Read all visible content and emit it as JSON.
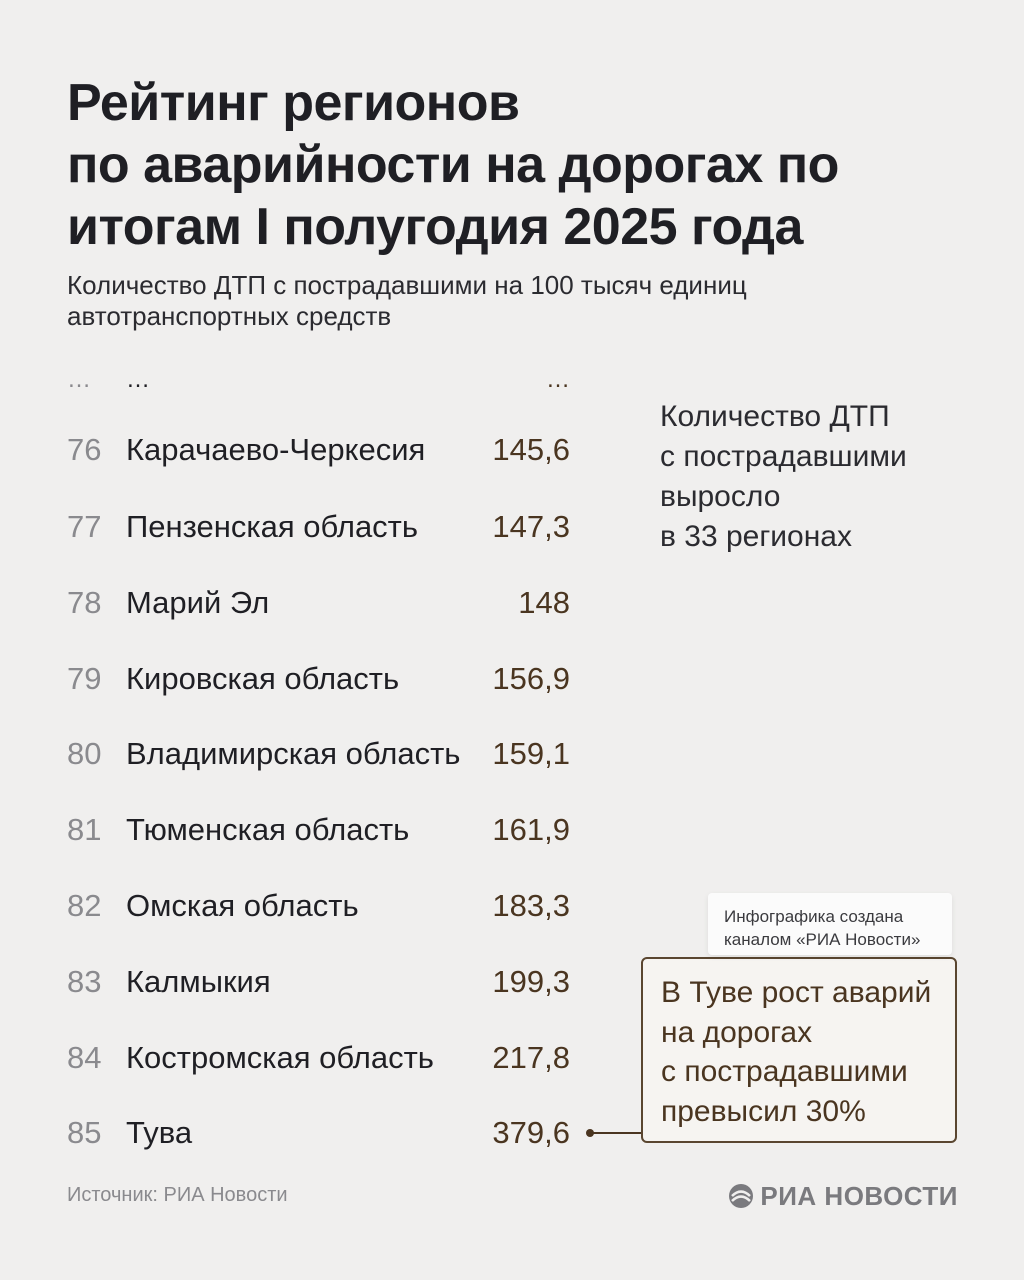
{
  "header": {
    "title": [
      "Рейтинг регионов",
      "по аварийности на дорогах по",
      "итогам I полугодия 2025 года"
    ],
    "subtitle": [
      "Количество ДТП с пострадавшими на 100 тысяч единиц",
      "автотранспортных средств"
    ]
  },
  "table": {
    "rows": [
      [
        "…",
        "…",
        "…"
      ],
      [
        "76",
        "Карачаево-Черкесия",
        "145,6"
      ],
      [
        "77",
        "Пензенская область",
        "147,3"
      ],
      [
        "78",
        "Марий Эл",
        "148"
      ],
      [
        "79",
        "Кировская область",
        "156,9"
      ],
      [
        "80",
        "Владимирская область",
        "159,1"
      ],
      [
        "81",
        "Тюменская область",
        "161,9"
      ],
      [
        "82",
        "Омская область",
        "183,3"
      ],
      [
        "83",
        "Калмыкия",
        "199,3"
      ],
      [
        "84",
        "Костромская область",
        "217,8"
      ],
      [
        "85",
        "Тува",
        "379,6"
      ]
    ]
  },
  "side_note": [
    "Количество ДТП",
    "с пострадавшими",
    "выросло",
    "в 33 регионах"
  ],
  "badge": [
    "Инфографика создана",
    "каналом «РИА Новости»"
  ],
  "callout": [
    "В Туве рост аварий",
    "на дорогах",
    "с пострадавшими",
    "превысил 30%"
  ],
  "footer": {
    "source": "Источник: РИА Новости",
    "logo": "РИА НОВОСТИ"
  }
}
